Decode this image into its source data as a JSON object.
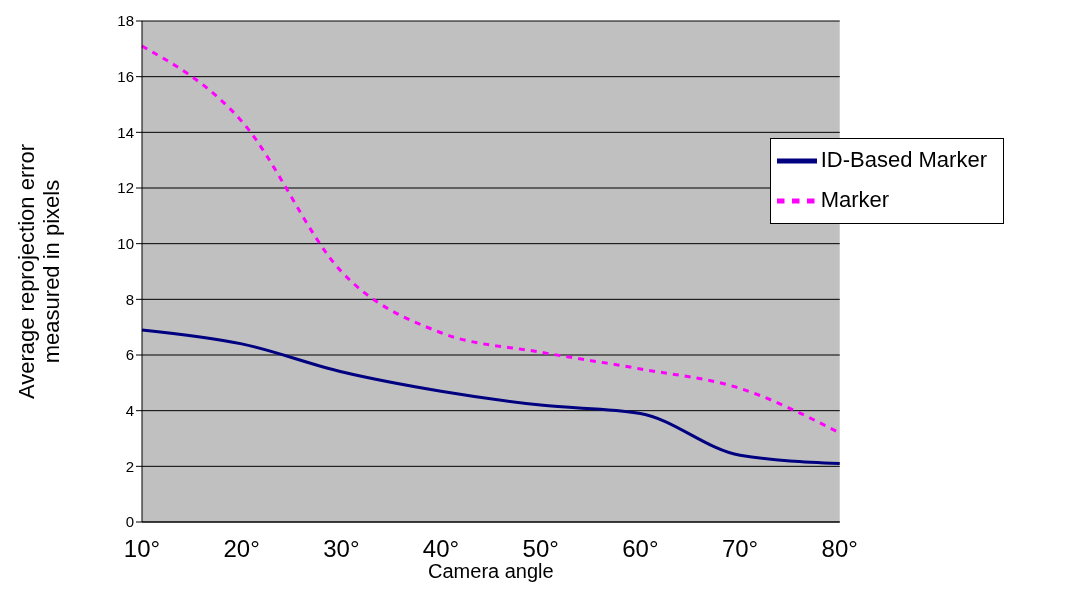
{
  "chart_data": {
    "type": "line",
    "xlabel": "Camera angle",
    "ylabel": "Average reprojection error measured in pixels",
    "categories": [
      "10°",
      "20°",
      "30°",
      "40°",
      "50°",
      "60°",
      "70°",
      "80°"
    ],
    "series": [
      {
        "name": "Marker",
        "color": "#ff00ff",
        "line_style": "dashed",
        "values": [
          17.1,
          14.4,
          9.0,
          6.8,
          6.1,
          5.5,
          4.8,
          3.2
        ]
      },
      {
        "name": "ID-Based Marker",
        "color": "#000080",
        "line_style": "solid",
        "values": [
          6.9,
          6.4,
          5.4,
          4.7,
          4.2,
          3.9,
          2.4,
          2.1
        ]
      }
    ],
    "ylim": [
      0,
      18
    ],
    "yticks": [
      0,
      2,
      4,
      6,
      8,
      10,
      12,
      14,
      16,
      18
    ],
    "grid": "y",
    "legend": "top right",
    "marker": "none"
  }
}
